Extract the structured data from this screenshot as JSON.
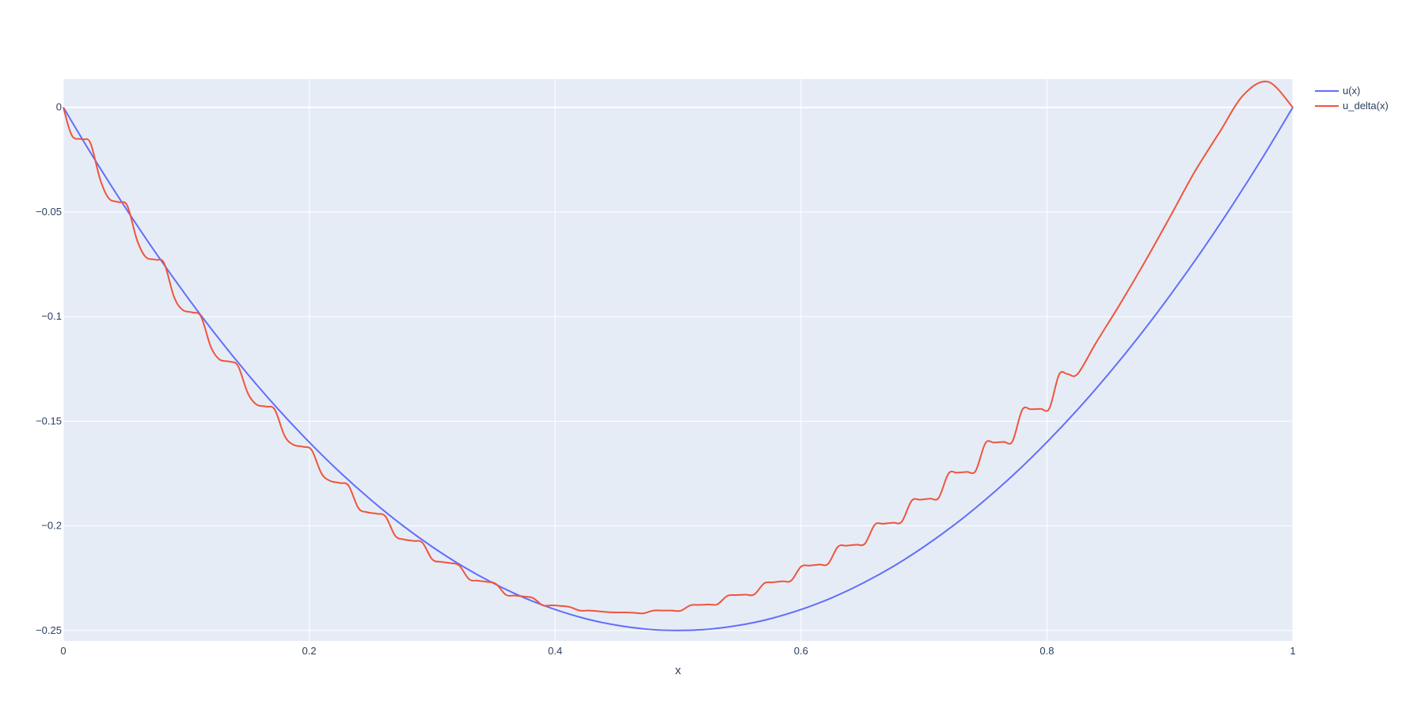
{
  "chart_data": {
    "type": "line",
    "title": "",
    "xlabel": "x",
    "ylabel": "",
    "xlim": [
      0,
      1
    ],
    "ylim": [
      -0.255,
      0.0135
    ],
    "grid": true,
    "legend_position": "top-right",
    "colors": {
      "plot_bg": "#e5ecf6",
      "grid": "#ffffff",
      "text": "#2a3f5f"
    },
    "x_ticks": [
      {
        "value": 0,
        "label": "0"
      },
      {
        "value": 0.2,
        "label": "0.2"
      },
      {
        "value": 0.4,
        "label": "0.4"
      },
      {
        "value": 0.6,
        "label": "0.6"
      },
      {
        "value": 0.8,
        "label": "0.8"
      },
      {
        "value": 1,
        "label": "1"
      }
    ],
    "y_ticks": [
      {
        "value": 0,
        "label": "0"
      },
      {
        "value": -0.05,
        "label": "−0.05"
      },
      {
        "value": -0.1,
        "label": "−0.1"
      },
      {
        "value": -0.15,
        "label": "−0.15"
      },
      {
        "value": -0.2,
        "label": "−0.2"
      },
      {
        "value": -0.25,
        "label": "−0.25"
      }
    ],
    "series": [
      {
        "name": "u(x)",
        "color": "#636efa",
        "x": [
          0,
          0.025,
          0.05,
          0.075,
          0.1,
          0.125,
          0.15,
          0.175,
          0.2,
          0.225,
          0.25,
          0.275,
          0.3,
          0.325,
          0.35,
          0.375,
          0.4,
          0.425,
          0.45,
          0.475,
          0.5,
          0.525,
          0.55,
          0.575,
          0.6,
          0.625,
          0.65,
          0.675,
          0.7,
          0.725,
          0.75,
          0.775,
          0.8,
          0.825,
          0.85,
          0.875,
          0.9,
          0.925,
          0.95,
          0.975,
          1
        ],
        "y": [
          0,
          -0.0244,
          -0.0475,
          -0.0694,
          -0.09,
          -0.1094,
          -0.1275,
          -0.1444,
          -0.16,
          -0.1744,
          -0.1875,
          -0.1994,
          -0.21,
          -0.2194,
          -0.2275,
          -0.2344,
          -0.24,
          -0.2444,
          -0.2475,
          -0.2494,
          -0.25,
          -0.2494,
          -0.2475,
          -0.2444,
          -0.24,
          -0.2344,
          -0.2275,
          -0.2194,
          -0.21,
          -0.1994,
          -0.1875,
          -0.1744,
          -0.16,
          -0.1444,
          -0.1275,
          -0.1094,
          -0.09,
          -0.0694,
          -0.0475,
          -0.0244,
          0
        ]
      },
      {
        "name": "u_delta(x)",
        "color": "#ef553b",
        "x": [
          0,
          0.007,
          0.015,
          0.022,
          0.03,
          0.037,
          0.045,
          0.052,
          0.06,
          0.067,
          0.075,
          0.082,
          0.09,
          0.097,
          0.105,
          0.112,
          0.12,
          0.127,
          0.135,
          0.142,
          0.15,
          0.157,
          0.165,
          0.172,
          0.18,
          0.187,
          0.195,
          0.202,
          0.21,
          0.217,
          0.225,
          0.232,
          0.24,
          0.247,
          0.255,
          0.262,
          0.27,
          0.277,
          0.285,
          0.292,
          0.3,
          0.307,
          0.315,
          0.322,
          0.33,
          0.337,
          0.345,
          0.352,
          0.36,
          0.367,
          0.375,
          0.382,
          0.39,
          0.397,
          0.405,
          0.412,
          0.42,
          0.427,
          0.435,
          0.442,
          0.45,
          0.457,
          0.465,
          0.472,
          0.48,
          0.487,
          0.495,
          0.502,
          0.51,
          0.517,
          0.525,
          0.532,
          0.54,
          0.547,
          0.555,
          0.562,
          0.57,
          0.577,
          0.585,
          0.592,
          0.6,
          0.607,
          0.615,
          0.622,
          0.63,
          0.637,
          0.645,
          0.652,
          0.66,
          0.667,
          0.675,
          0.682,
          0.69,
          0.697,
          0.705,
          0.712,
          0.72,
          0.727,
          0.735,
          0.742,
          0.75,
          0.757,
          0.765,
          0.772,
          0.78,
          0.787,
          0.795,
          0.802,
          0.81,
          0.817,
          0.825,
          0.84,
          0.86,
          0.88,
          0.9,
          0.92,
          0.94,
          0.96,
          0.98,
          1
        ],
        "y": [
          0,
          -0.0135,
          -0.0152,
          -0.017,
          -0.0345,
          -0.0435,
          -0.0453,
          -0.047,
          -0.0635,
          -0.0715,
          -0.0728,
          -0.0745,
          -0.0905,
          -0.0968,
          -0.098,
          -0.1,
          -0.1145,
          -0.1205,
          -0.1215,
          -0.1235,
          -0.1365,
          -0.142,
          -0.143,
          -0.1445,
          -0.157,
          -0.1612,
          -0.1622,
          -0.1638,
          -0.175,
          -0.1785,
          -0.1795,
          -0.1808,
          -0.1915,
          -0.1935,
          -0.1942,
          -0.1955,
          -0.2048,
          -0.2065,
          -0.2072,
          -0.208,
          -0.216,
          -0.2172,
          -0.2178,
          -0.219,
          -0.2255,
          -0.2262,
          -0.2268,
          -0.2278,
          -0.233,
          -0.2333,
          -0.2338,
          -0.2345,
          -0.238,
          -0.238,
          -0.2383,
          -0.2388,
          -0.2405,
          -0.2405,
          -0.2408,
          -0.2412,
          -0.2414,
          -0.2414,
          -0.2416,
          -0.2418,
          -0.2405,
          -0.2405,
          -0.2405,
          -0.2406,
          -0.238,
          -0.2378,
          -0.2376,
          -0.2375,
          -0.2335,
          -0.2331,
          -0.2329,
          -0.2328,
          -0.2275,
          -0.227,
          -0.2265,
          -0.2262,
          -0.2195,
          -0.219,
          -0.2185,
          -0.2182,
          -0.21,
          -0.2095,
          -0.209,
          -0.2085,
          -0.1995,
          -0.199,
          -0.1985,
          -0.198,
          -0.188,
          -0.1875,
          -0.187,
          -0.1866,
          -0.175,
          -0.1746,
          -0.1742,
          -0.1738,
          -0.1605,
          -0.1602,
          -0.1599,
          -0.1596,
          -0.1445,
          -0.1443,
          -0.1441,
          -0.1439,
          -0.1276,
          -0.1275,
          -0.1274,
          -0.1125,
          -0.0935,
          -0.0735,
          -0.0525,
          -0.031,
          -0.0123,
          0.006,
          0.0122,
          0
        ]
      }
    ]
  }
}
